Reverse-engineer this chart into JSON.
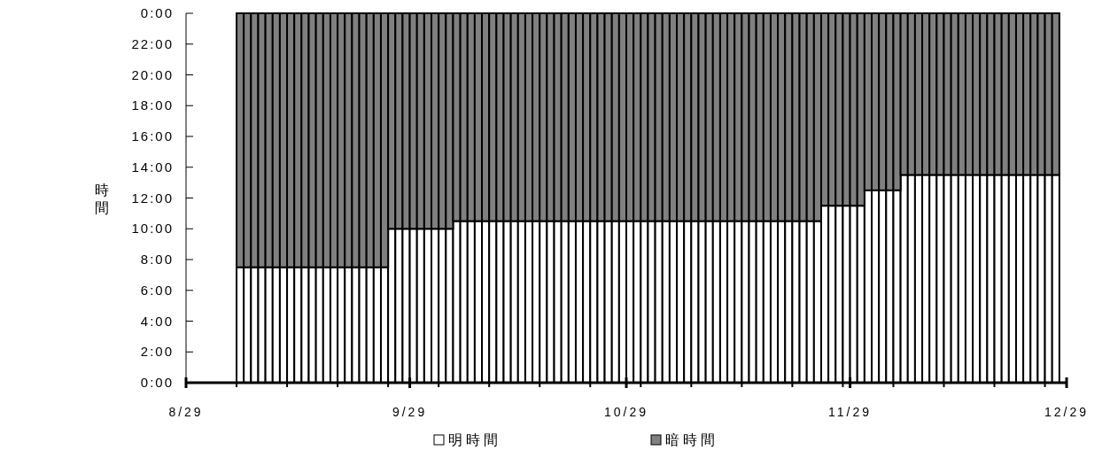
{
  "chart_data": {
    "type": "bar",
    "stacked": true,
    "ylabel": "時間",
    "legend": "bottom",
    "x": [
      "--09-05",
      "--09-06",
      "--09-07",
      "--09-08",
      "--09-09",
      "--09-10",
      "--09-11",
      "--09-12",
      "--09-13",
      "--09-14",
      "--09-15",
      "--09-16",
      "--09-17",
      "--09-18",
      "--09-19",
      "--09-20",
      "--09-21",
      "--09-22",
      "--09-23",
      "--09-24",
      "--09-25",
      "--09-26",
      "--09-27",
      "--09-28",
      "--09-29",
      "--09-30",
      "--10-01",
      "--10-02",
      "--10-03",
      "--10-04",
      "--10-05",
      "--10-06",
      "--10-07",
      "--10-08",
      "--10-09",
      "--10-10",
      "--10-11",
      "--10-12",
      "--10-13",
      "--10-14",
      "--10-15",
      "--10-16",
      "--10-17",
      "--10-18",
      "--10-19",
      "--10-20",
      "--10-21",
      "--10-22",
      "--10-23",
      "--10-24",
      "--10-25",
      "--10-26",
      "--10-27",
      "--10-28",
      "--10-29",
      "--10-30",
      "--10-31",
      "--11-01",
      "--11-02",
      "--11-03",
      "--11-04",
      "--11-05",
      "--11-06",
      "--11-07",
      "--11-08",
      "--11-09",
      "--11-10",
      "--11-11",
      "--11-12",
      "--11-13",
      "--11-14",
      "--11-15",
      "--11-16",
      "--11-17",
      "--11-18",
      "--11-19",
      "--11-20",
      "--11-21",
      "--11-22",
      "--11-23",
      "--11-24",
      "--11-25",
      "--11-26",
      "--11-27",
      "--11-28",
      "--11-29",
      "--11-30",
      "--12-01",
      "--12-02",
      "--12-03",
      "--12-04",
      "--12-05",
      "--12-06",
      "--12-07",
      "--12-08",
      "--12-09",
      "--12-10",
      "--12-11",
      "--12-12",
      "--12-13",
      "--12-14",
      "--12-15",
      "--12-16",
      "--12-17",
      "--12-18",
      "--12-19",
      "--12-20",
      "--12-21",
      "--12-22",
      "--12-23",
      "--12-24",
      "--12-25",
      "--12-26",
      "--12-27"
    ],
    "series": [
      {
        "name": "明時間",
        "color": "#ffffff",
        "values": [
          7.5,
          7.5,
          7.5,
          7.5,
          7.5,
          7.5,
          7.5,
          7.5,
          7.5,
          7.5,
          7.5,
          7.5,
          7.5,
          7.5,
          7.5,
          7.5,
          7.5,
          7.5,
          7.5,
          7.5,
          7.5,
          10,
          10,
          10,
          10,
          10,
          10,
          10,
          10,
          10,
          10.5,
          10.5,
          10.5,
          10.5,
          10.5,
          10.5,
          10.5,
          10.5,
          10.5,
          10.5,
          10.5,
          10.5,
          10.5,
          10.5,
          10.5,
          10.5,
          10.5,
          10.5,
          10.5,
          10.5,
          10.5,
          10.5,
          10.5,
          10.5,
          10.5,
          10.5,
          10.5,
          10.5,
          10.5,
          10.5,
          10.5,
          10.5,
          10.5,
          10.5,
          10.5,
          10.5,
          10.5,
          10.5,
          10.5,
          10.5,
          10.5,
          10.5,
          10.5,
          10.5,
          10.5,
          10.5,
          10.5,
          10.5,
          10.5,
          10.5,
          10.5,
          11.5,
          11.5,
          11.5,
          11.5,
          11.5,
          11.5,
          12.5,
          12.5,
          12.5,
          12.5,
          12.5,
          13.5,
          13.5,
          13.5,
          13.5,
          13.5,
          13.5,
          13.5,
          13.5,
          13.5,
          13.5,
          13.5,
          13.5,
          13.5,
          13.5,
          13.5,
          13.5,
          13.5,
          13.5,
          13.5,
          13.5,
          13.5,
          13.5
        ]
      },
      {
        "name": "暗時間",
        "color": "#808080",
        "values": [
          16.5,
          16.5,
          16.5,
          16.5,
          16.5,
          16.5,
          16.5,
          16.5,
          16.5,
          16.5,
          16.5,
          16.5,
          16.5,
          16.5,
          16.5,
          16.5,
          16.5,
          16.5,
          16.5,
          16.5,
          16.5,
          14,
          14,
          14,
          14,
          14,
          14,
          14,
          14,
          14,
          13.5,
          13.5,
          13.5,
          13.5,
          13.5,
          13.5,
          13.5,
          13.5,
          13.5,
          13.5,
          13.5,
          13.5,
          13.5,
          13.5,
          13.5,
          13.5,
          13.5,
          13.5,
          13.5,
          13.5,
          13.5,
          13.5,
          13.5,
          13.5,
          13.5,
          13.5,
          13.5,
          13.5,
          13.5,
          13.5,
          13.5,
          13.5,
          13.5,
          13.5,
          13.5,
          13.5,
          13.5,
          13.5,
          13.5,
          13.5,
          13.5,
          13.5,
          13.5,
          13.5,
          13.5,
          13.5,
          13.5,
          13.5,
          13.5,
          13.5,
          13.5,
          12.5,
          12.5,
          12.5,
          12.5,
          12.5,
          12.5,
          11.5,
          11.5,
          11.5,
          11.5,
          11.5,
          10.5,
          10.5,
          10.5,
          10.5,
          10.5,
          10.5,
          10.5,
          10.5,
          10.5,
          10.5,
          10.5,
          10.5,
          10.5,
          10.5,
          10.5,
          10.5,
          10.5,
          10.5,
          10.5,
          10.5,
          10.5,
          10.5
        ]
      }
    ],
    "xlim": [
      "--08-29",
      "--12-29"
    ],
    "xticks": [
      {
        "value": "--08-29",
        "label": "8/29"
      },
      {
        "value": "--09-05",
        "label": null
      },
      {
        "value": "--09-12",
        "label": null
      },
      {
        "value": "--09-19",
        "label": null
      },
      {
        "value": "--09-26",
        "label": null
      },
      {
        "value": "--09-29",
        "label": "9/29"
      },
      {
        "value": "--10-03",
        "label": null
      },
      {
        "value": "--10-10",
        "label": null
      },
      {
        "value": "--10-17",
        "label": null
      },
      {
        "value": "--10-24",
        "label": null
      },
      {
        "value": "--10-29",
        "label": "10/29"
      },
      {
        "value": "--10-31",
        "label": null
      },
      {
        "value": "--11-07",
        "label": null
      },
      {
        "value": "--11-14",
        "label": null
      },
      {
        "value": "--11-21",
        "label": null
      },
      {
        "value": "--11-28",
        "label": null
      },
      {
        "value": "--11-29",
        "label": "11/29"
      },
      {
        "value": "--12-05",
        "label": null
      },
      {
        "value": "--12-12",
        "label": null
      },
      {
        "value": "--12-19",
        "label": null
      },
      {
        "value": "--12-26",
        "label": null
      },
      {
        "value": "--12-29",
        "label": "12/29"
      }
    ],
    "ylim": [
      0,
      24
    ],
    "yticks": [
      {
        "value": 0,
        "label": "0:00"
      },
      {
        "value": 2,
        "label": "2:00"
      },
      {
        "value": 4,
        "label": "4:00"
      },
      {
        "value": 6,
        "label": "6:00"
      },
      {
        "value": 8,
        "label": "8:00"
      },
      {
        "value": 10,
        "label": "10:00"
      },
      {
        "value": 12,
        "label": "12:00"
      },
      {
        "value": 14,
        "label": "14:00"
      },
      {
        "value": 16,
        "label": "16:00"
      },
      {
        "value": 18,
        "label": "18:00"
      },
      {
        "value": 20,
        "label": "20:00"
      },
      {
        "value": 22,
        "label": "22:00"
      },
      {
        "value": 24,
        "label": "0:00"
      }
    ]
  }
}
